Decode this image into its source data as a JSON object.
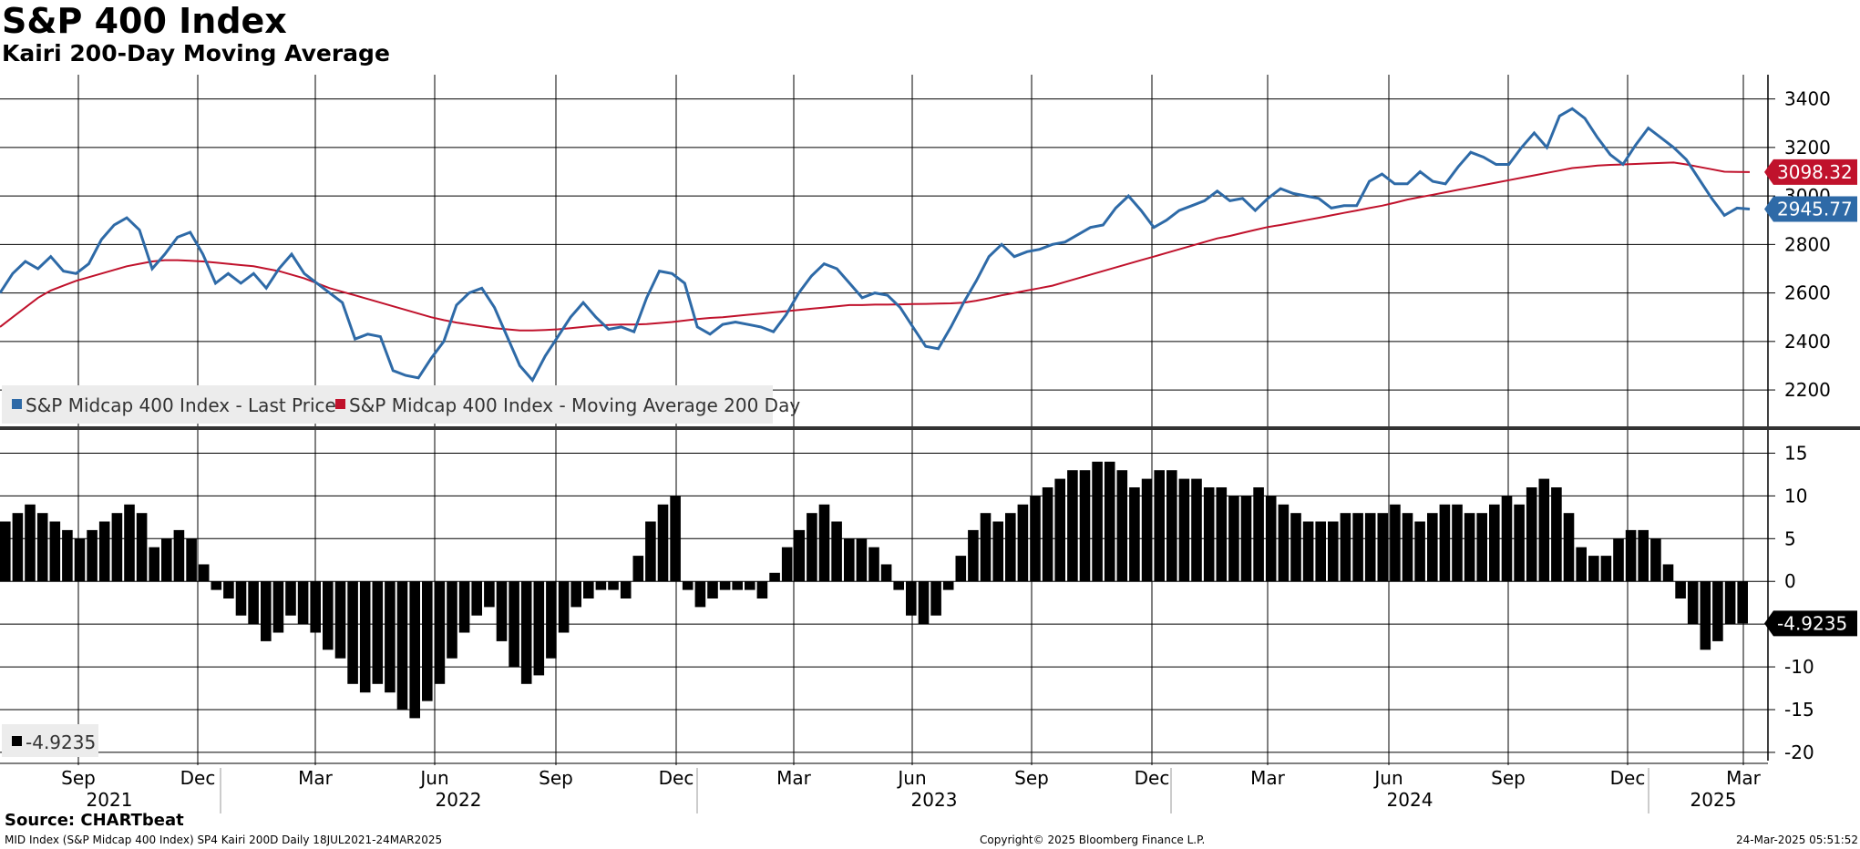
{
  "title": "S&P 400 Index",
  "subtitle": "Kairi 200-Day Moving Average",
  "colors": {
    "price": "#2e6aa7",
    "ma": "#c0122c",
    "kairi": "#000000",
    "grid": "#000000"
  },
  "chart_data": {
    "type": "line",
    "date_range": "18JUL2021-24MAR2025",
    "x_months": [
      "Sep",
      "Dec",
      "Mar",
      "Jun",
      "Sep",
      "Dec",
      "Mar",
      "Jun",
      "Sep",
      "Dec",
      "Mar",
      "Jun",
      "Sep",
      "Dec",
      "Mar"
    ],
    "x_years": [
      "2021",
      "2022",
      "2023",
      "2024",
      "2025"
    ],
    "top_panel": {
      "ylim": [
        2050,
        3500
      ],
      "yticks": [
        "2200",
        "2400",
        "2600",
        "2800",
        "3000",
        "3200",
        "3400"
      ],
      "last_price_label": "2945.77",
      "ma_label": "3098.32",
      "series": [
        {
          "name": "S&P Midcap 400 Index - Last Price",
          "values": [
            2600,
            2680,
            2730,
            2700,
            2750,
            2690,
            2680,
            2720,
            2820,
            2880,
            2910,
            2860,
            2700,
            2760,
            2830,
            2850,
            2760,
            2640,
            2680,
            2640,
            2680,
            2620,
            2700,
            2760,
            2680,
            2640,
            2600,
            2560,
            2410,
            2430,
            2420,
            2280,
            2260,
            2250,
            2330,
            2400,
            2550,
            2600,
            2620,
            2540,
            2420,
            2300,
            2240,
            2340,
            2420,
            2500,
            2560,
            2500,
            2450,
            2460,
            2440,
            2580,
            2690,
            2680,
            2640,
            2460,
            2430,
            2470,
            2480,
            2470,
            2460,
            2440,
            2510,
            2600,
            2670,
            2720,
            2700,
            2640,
            2580,
            2600,
            2590,
            2540,
            2460,
            2380,
            2370,
            2460,
            2560,
            2650,
            2750,
            2800,
            2750,
            2770,
            2780,
            2800,
            2810,
            2840,
            2870,
            2880,
            2950,
            3000,
            2940,
            2870,
            2900,
            2940,
            2960,
            2980,
            3020,
            2980,
            2990,
            2940,
            2990,
            3030,
            3010,
            3000,
            2990,
            2950,
            2960,
            2960,
            3060,
            3090,
            3050,
            3050,
            3100,
            3060,
            3050,
            3120,
            3180,
            3160,
            3130,
            3130,
            3200,
            3260,
            3200,
            3330,
            3360,
            3320,
            3240,
            3170,
            3130,
            3210,
            3280,
            3240,
            3200,
            3150,
            3070,
            2990,
            2920,
            2950,
            2945.77
          ]
        },
        {
          "name": "S&P Midcap 400 Index - Moving Average 200 Day",
          "values": [
            2460,
            2500,
            2540,
            2580,
            2610,
            2630,
            2650,
            2665,
            2680,
            2695,
            2710,
            2720,
            2730,
            2735,
            2735,
            2733,
            2730,
            2725,
            2720,
            2715,
            2710,
            2700,
            2690,
            2675,
            2660,
            2640,
            2620,
            2605,
            2590,
            2575,
            2560,
            2545,
            2530,
            2515,
            2500,
            2488,
            2478,
            2470,
            2462,
            2455,
            2450,
            2445,
            2445,
            2447,
            2450,
            2455,
            2460,
            2465,
            2468,
            2470,
            2470,
            2472,
            2476,
            2480,
            2486,
            2492,
            2497,
            2500,
            2505,
            2510,
            2515,
            2520,
            2525,
            2530,
            2535,
            2540,
            2545,
            2550,
            2550,
            2552,
            2552,
            2553,
            2554,
            2555,
            2556,
            2557,
            2560,
            2568,
            2578,
            2590,
            2600,
            2610,
            2620,
            2630,
            2645,
            2660,
            2675,
            2690,
            2705,
            2720,
            2735,
            2750,
            2765,
            2780,
            2795,
            2810,
            2825,
            2835,
            2848,
            2860,
            2872,
            2880,
            2890,
            2900,
            2910,
            2920,
            2930,
            2940,
            2950,
            2960,
            2972,
            2985,
            2995,
            3005,
            3015,
            3025,
            3035,
            3045,
            3055,
            3065,
            3075,
            3085,
            3095,
            3105,
            3115,
            3120,
            3125,
            3128,
            3130,
            3132,
            3134,
            3136,
            3138,
            3130,
            3120,
            3110,
            3100,
            3099,
            3098.32
          ]
        }
      ]
    },
    "bottom_panel": {
      "ylim": [
        -21.5,
        17.5
      ],
      "yticks": [
        "-20",
        "-15",
        "-10",
        "-5",
        "0",
        "5",
        "10",
        "15"
      ],
      "last_label": "-4.9235",
      "legend_label": "-4.9235",
      "series": [
        {
          "name": "Kairi 200D",
          "values": [
            7,
            8,
            9,
            8,
            7,
            6,
            5,
            6,
            7,
            8,
            9,
            8,
            4,
            5,
            6,
            5,
            2,
            -1,
            -2,
            -4,
            -5,
            -7,
            -6,
            -4,
            -5,
            -6,
            -8,
            -9,
            -12,
            -13,
            -12,
            -13,
            -15,
            -16,
            -14,
            -12,
            -9,
            -6,
            -4,
            -3,
            -7,
            -10,
            -12,
            -11,
            -9,
            -6,
            -3,
            -2,
            -1,
            -1,
            -2,
            3,
            7,
            9,
            10,
            -1,
            -3,
            -2,
            -1,
            -1,
            -1,
            -2,
            1,
            4,
            6,
            8,
            9,
            7,
            5,
            5,
            4,
            2,
            -1,
            -4,
            -5,
            -4,
            -1,
            3,
            6,
            8,
            7,
            8,
            9,
            10,
            11,
            12,
            13,
            13,
            14,
            14,
            13,
            11,
            12,
            13,
            13,
            12,
            12,
            11,
            11,
            10,
            10,
            11,
            10,
            9,
            8,
            7,
            7,
            7,
            8,
            8,
            8,
            8,
            9,
            8,
            7,
            8,
            9,
            9,
            8,
            8,
            9,
            10,
            9,
            11,
            12,
            11,
            8,
            4,
            3,
            3,
            5,
            6,
            6,
            5,
            2,
            -2,
            -5,
            -8,
            -7,
            -5,
            -4.9235
          ]
        }
      ]
    },
    "legend": [
      "S&P Midcap 400 Index - Last Price",
      "S&P Midcap 400 Index - Moving Average 200 Day"
    ]
  },
  "footer": {
    "source": "Source: CHARTbeat",
    "left": "MID Index (S&P Midcap 400 Index) SP4 Kairi 200D  Daily 18JUL2021-24MAR2025",
    "center": "Copyright© 2025 Bloomberg Finance L.P.",
    "right": "24-Mar-2025 05:51:52"
  }
}
